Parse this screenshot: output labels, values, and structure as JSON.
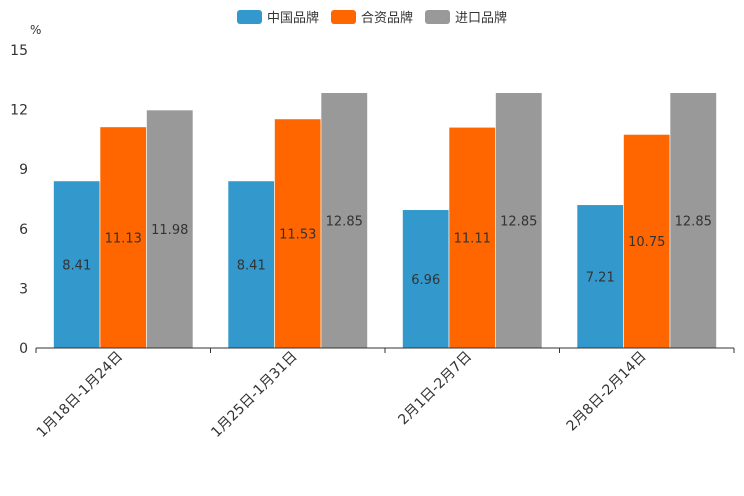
{
  "chart_data": {
    "type": "bar",
    "title": "",
    "ylabel": "%",
    "xlabel": "",
    "ylim": [
      0,
      15
    ],
    "yticks": [
      0,
      3,
      6,
      9,
      12,
      15
    ],
    "categories": [
      "1月18日-1月24日",
      "1月25日-1月31日",
      "2月1日-2月7日",
      "2月8日-2月14日"
    ],
    "series": [
      {
        "name": "中国品牌",
        "color": "#3399cc",
        "values": [
          8.41,
          8.41,
          6.96,
          7.21
        ]
      },
      {
        "name": "合资品牌",
        "color": "#ff6600",
        "values": [
          11.13,
          11.53,
          11.11,
          10.75
        ]
      },
      {
        "name": "进口品牌",
        "color": "#999999",
        "values": [
          11.98,
          12.85,
          12.85,
          12.85
        ]
      }
    ],
    "legend_position": "top-center",
    "grid": false
  }
}
